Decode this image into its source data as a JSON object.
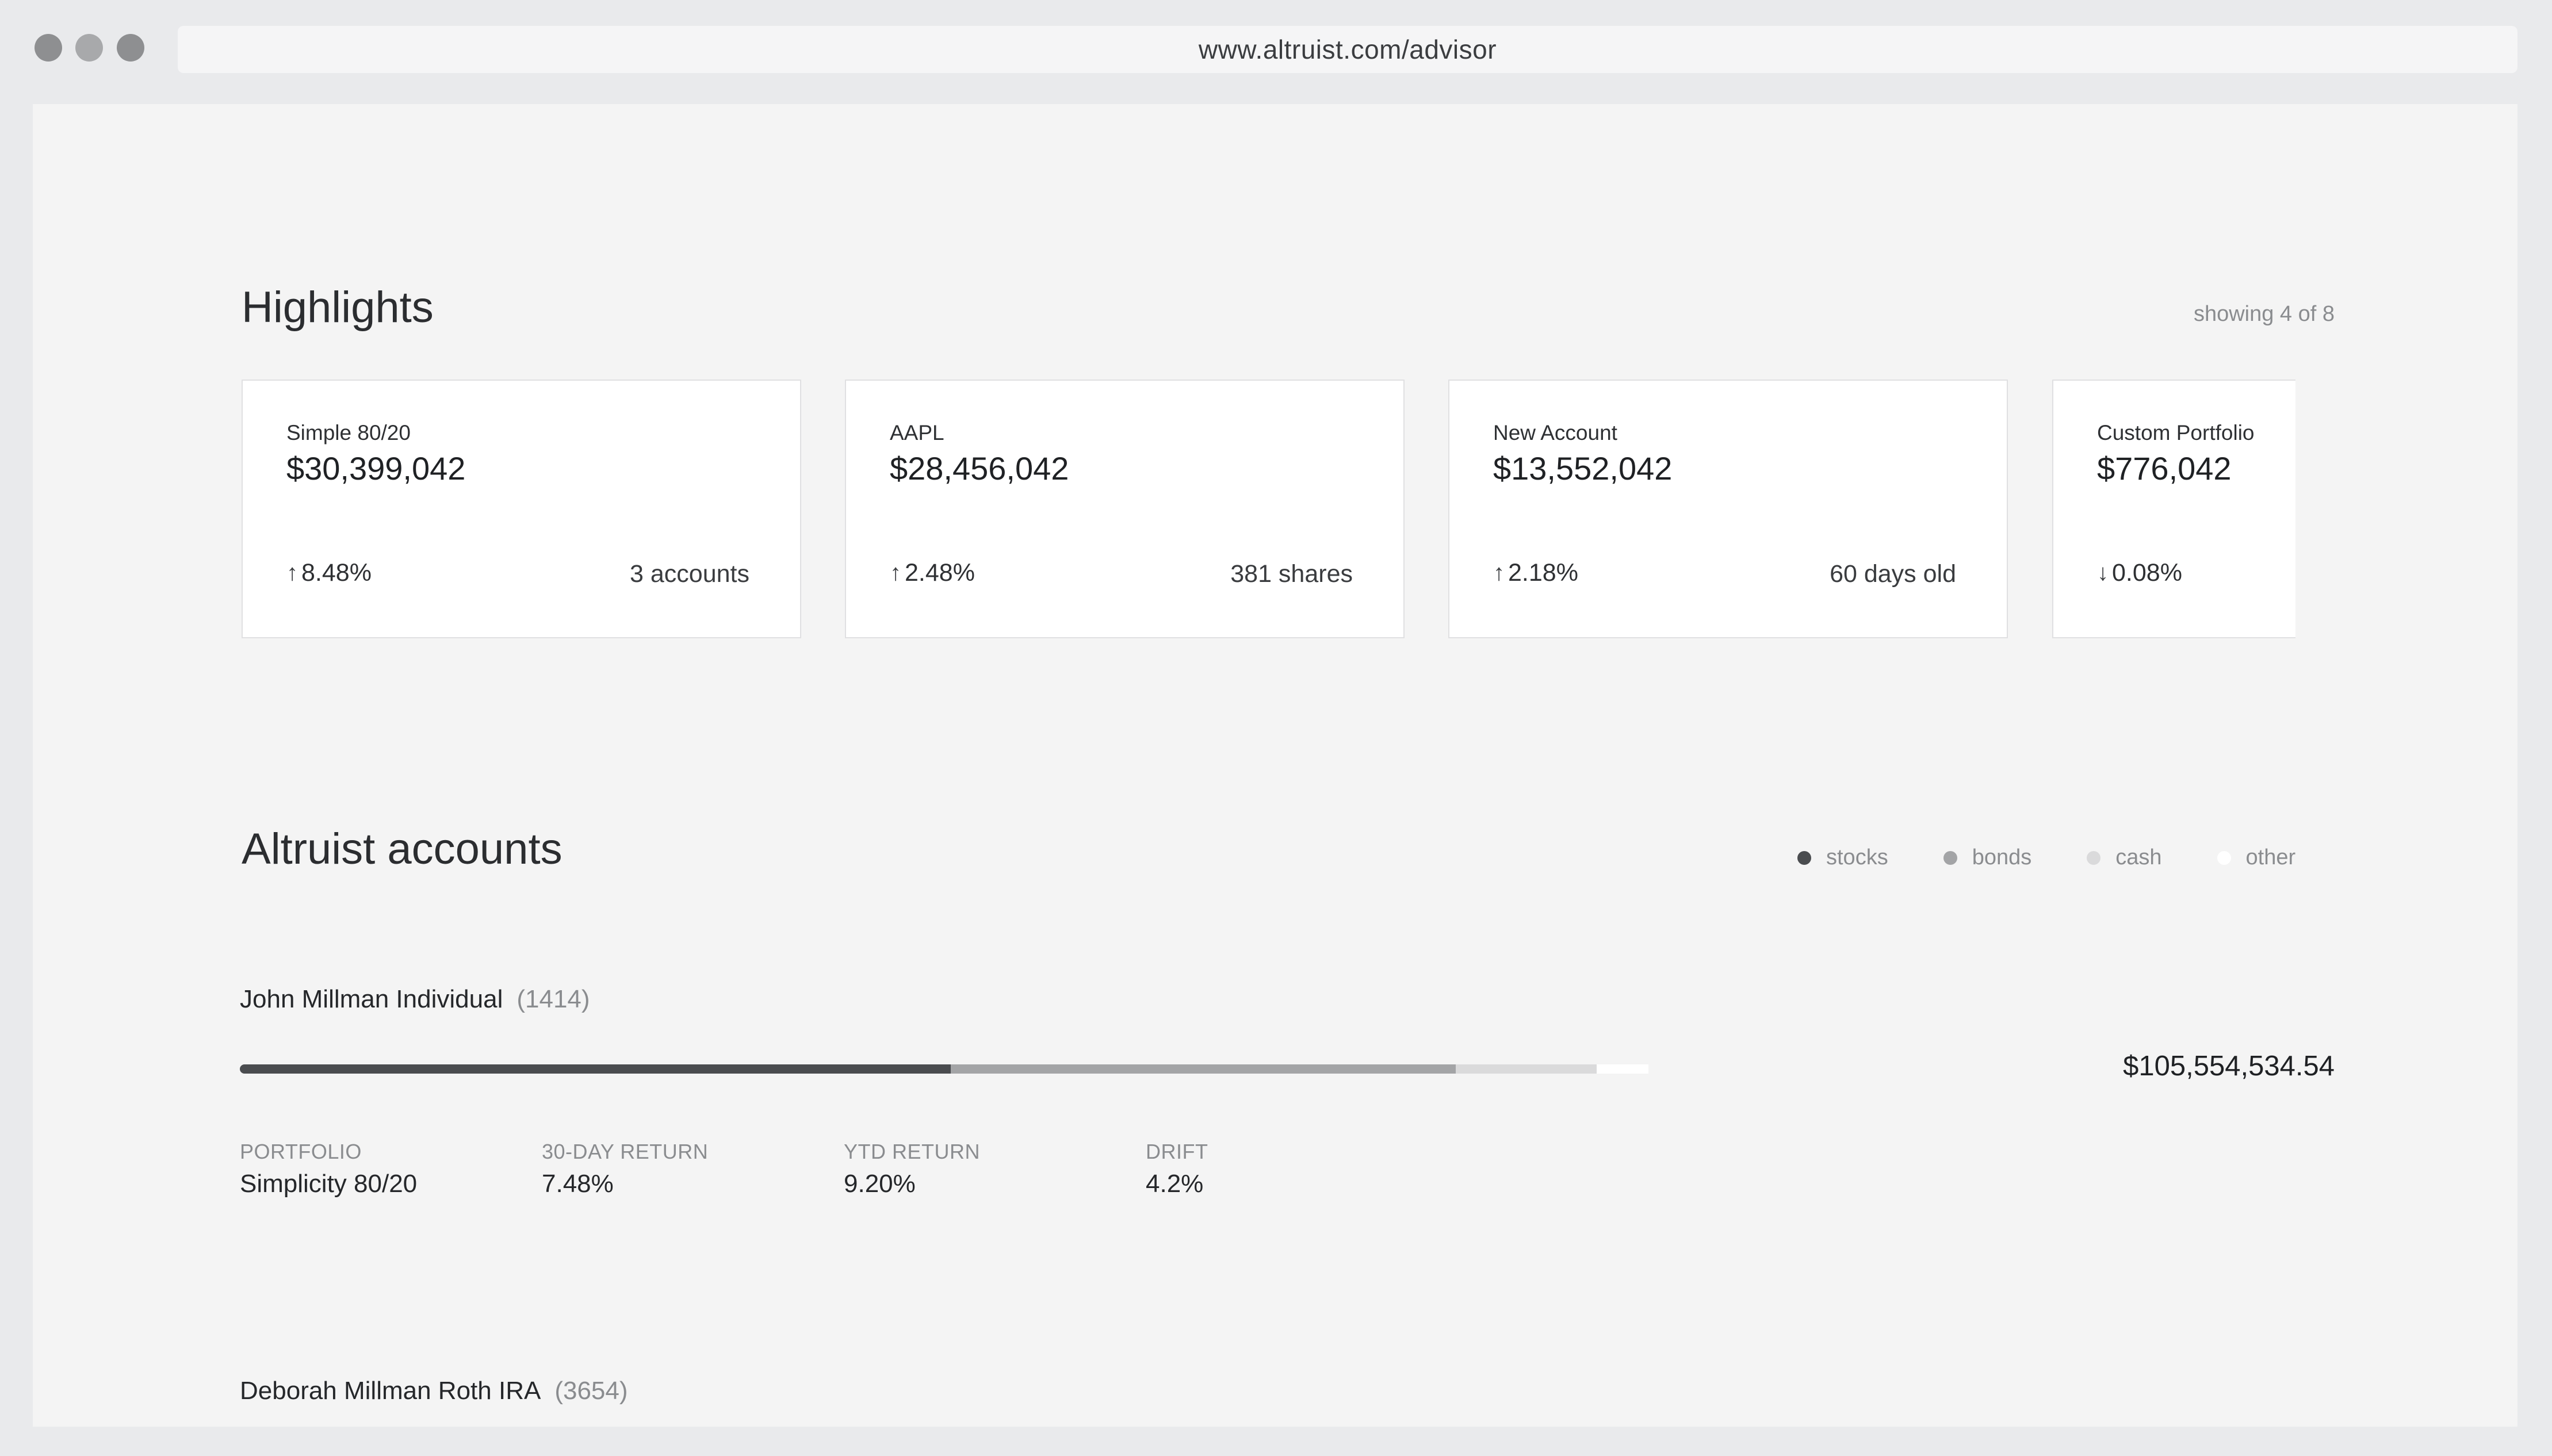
{
  "browser": {
    "url": "www.altruist.com/advisor"
  },
  "highlights": {
    "title": "Highlights",
    "showing": "showing 4 of 8",
    "cards": [
      {
        "label": "Simple 80/20",
        "value": "$30,399,042",
        "direction": "up",
        "change": "8.48%",
        "meta": "3 accounts"
      },
      {
        "label": "AAPL",
        "value": "$28,456,042",
        "direction": "up",
        "change": "2.48%",
        "meta": "381 shares"
      },
      {
        "label": "New Account",
        "value": "$13,552,042",
        "direction": "up",
        "change": "2.18%",
        "meta": "60 days old"
      },
      {
        "label": "Custom Portfolio",
        "value": "$776,042",
        "direction": "down",
        "change": "0.08%",
        "meta": ""
      }
    ]
  },
  "accounts": {
    "title": "Altruist accounts",
    "legend": [
      {
        "label": "stocks",
        "color": "#4a4c4f"
      },
      {
        "label": "bonds",
        "color": "#a3a4a6"
      },
      {
        "label": "cash",
        "color": "#dadadb"
      },
      {
        "label": "other",
        "color": "#ffffff"
      }
    ],
    "items": [
      {
        "name": "John Millman Individual",
        "number": "(1414)",
        "total": "$105,554,534.54",
        "allocation": {
          "stocks": 0.439,
          "bonds": 0.312,
          "cash": 0.087,
          "other": 0.032
        },
        "stats": [
          {
            "label": "PORTFOLIO",
            "value": "Simplicity 80/20"
          },
          {
            "label": "30-DAY RETURN",
            "value": "7.48%"
          },
          {
            "label": "YTD RETURN",
            "value": "9.20%"
          },
          {
            "label": "DRIFT",
            "value": "4.2%"
          }
        ]
      },
      {
        "name": "Deborah Millman Roth IRA",
        "number": "(3654)"
      }
    ]
  }
}
